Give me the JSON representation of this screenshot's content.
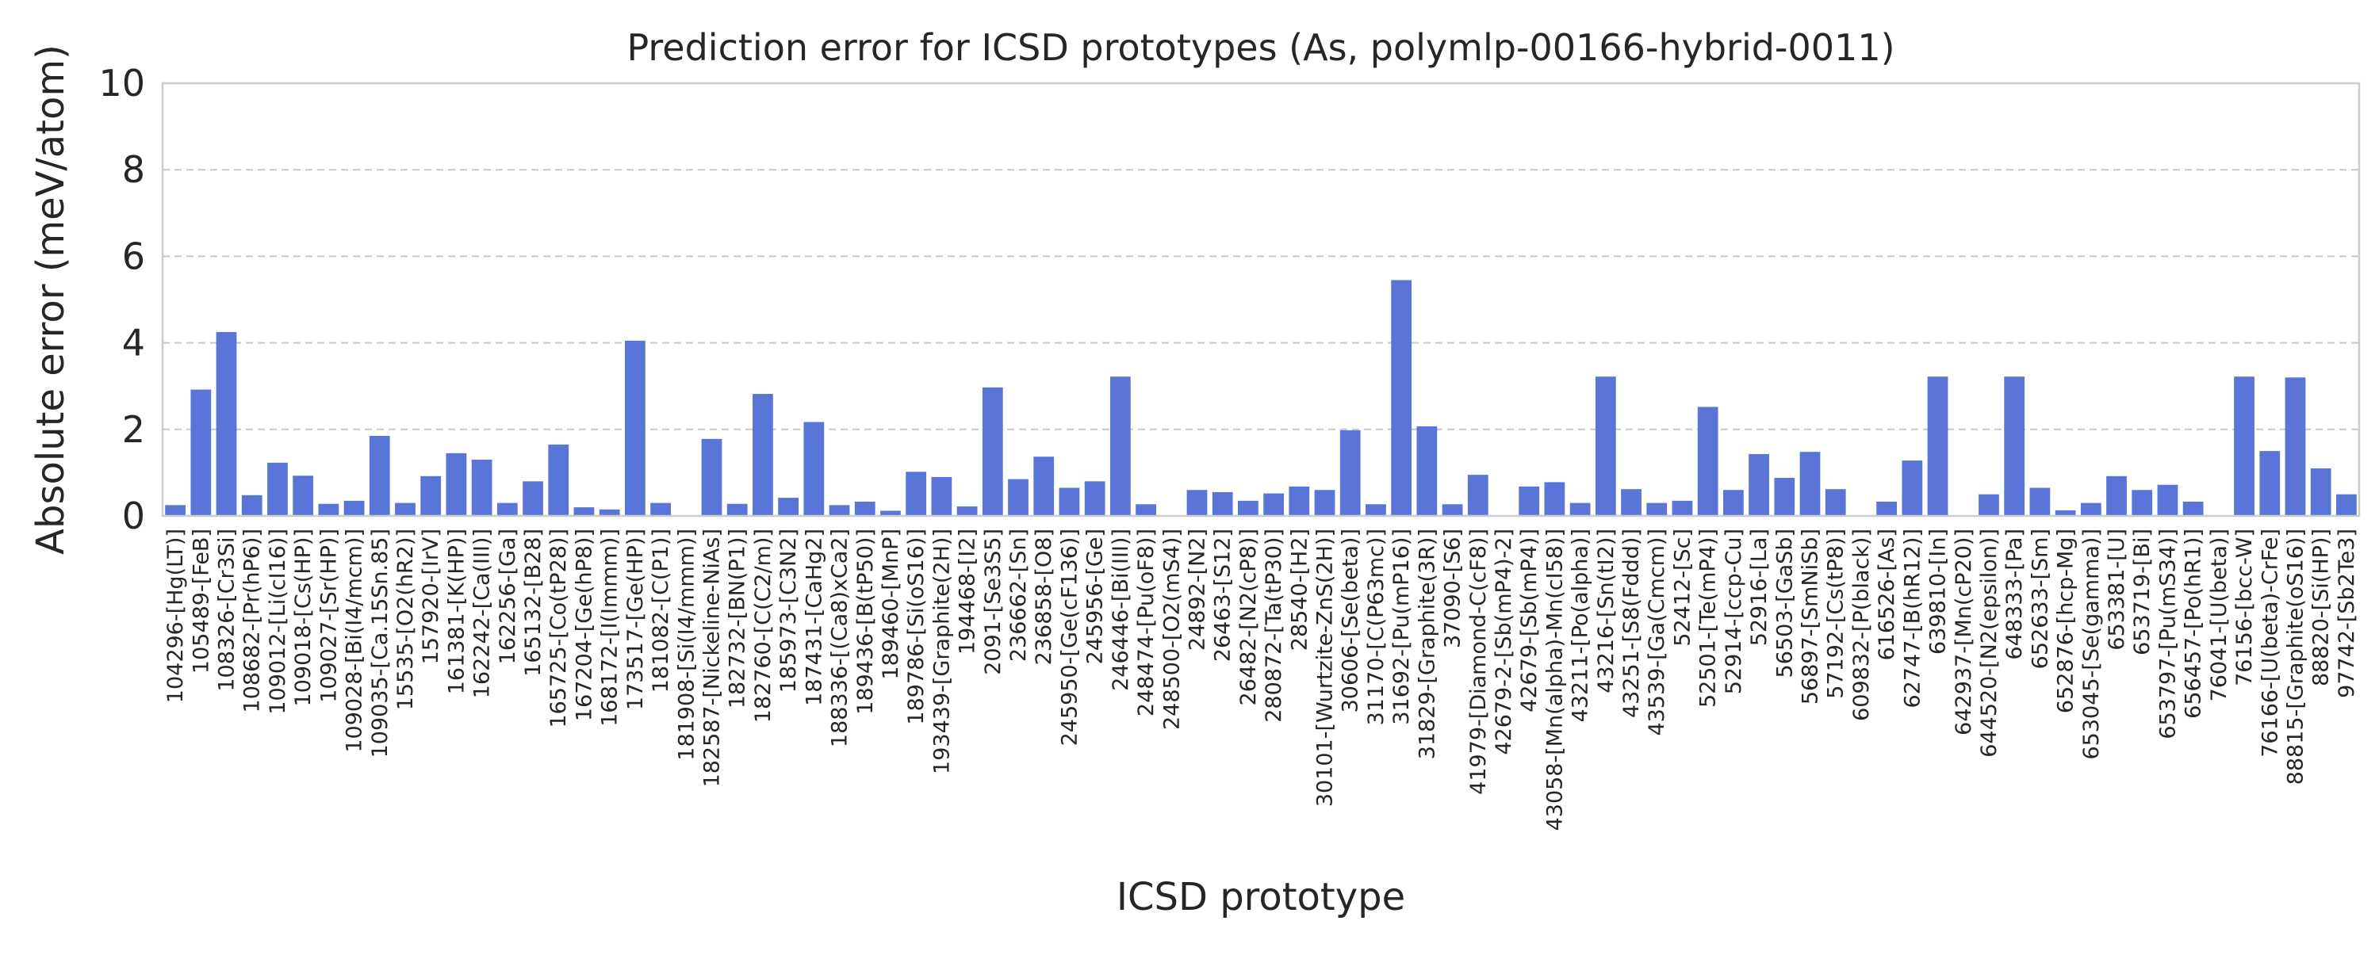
{
  "chart_data": {
    "type": "bar",
    "title": "Prediction error for ICSD prototypes (As, polymlp-00166-hybrid-0011)",
    "xlabel": "ICSD prototype",
    "ylabel": "Absolute error (meV/atom)",
    "ylim": [
      0,
      10
    ],
    "yticks": [
      0,
      2,
      4,
      6,
      8,
      10
    ],
    "grid": "horizontal dashed",
    "bar_color": "#5975d8",
    "categories": [
      "104296-[Hg(LT)]",
      "105489-[FeB]",
      "108326-[Cr3Si]",
      "108682-[Pr(hP6)]",
      "109012-[Li(cI16)]",
      "109018-[Cs(HP)]",
      "109027-[Sr(HP)]",
      "109028-[Bi(I4/mcm)]",
      "109035-[Ca.15Sn.85]",
      "15535-[O2(hR2)]",
      "157920-[IrV]",
      "161381-[K(HP)]",
      "162242-[Ca(III)]",
      "162256-[Ga]",
      "165132-[B28]",
      "165725-[Co(tP28)]",
      "167204-[Ge(hP8)]",
      "168172-[I(Immm)]",
      "173517-[Ge(HP)]",
      "181082-[C(P1)]",
      "181908-[Si(I4/mmm)]",
      "182587-[Nickeline-NiAs]",
      "182732-[BN(P1)]",
      "182760-[C(C2/m)]",
      "185973-[C3N2]",
      "187431-[CaHg2]",
      "188336-[(Ca8)xCa2]",
      "189436-[B(tP50)]",
      "189460-[MnP]",
      "189786-[Si(oS16)]",
      "193439-[Graphite(2H)]",
      "194468-[I2]",
      "2091-[Se3S5]",
      "236662-[Sn]",
      "236858-[O8]",
      "245950-[Ge(cF136)]",
      "245956-[Ge]",
      "246446-[Bi(III)]",
      "248474-[Pu(oF8)]",
      "248500-[O2(mS4)]",
      "24892-[N2]",
      "26463-[S12]",
      "26482-[N2(cP8)]",
      "280872-[Ta(tP30)]",
      "28540-[H2]",
      "30101-[Wurtzite-ZnS(2H)]",
      "30606-[Se(beta)]",
      "31170-[C(P63mc)]",
      "31692-[Pu(mP16)]",
      "31829-[Graphite(3R)]",
      "37090-[S6]",
      "41979-[Diamond-C(cF8)]",
      "42679-2-[Sb(mP4)-2]",
      "42679-[Sb(mP4)]",
      "43058-[Mn(alpha)-Mn(cI58)]",
      "43211-[Po(alpha)]",
      "43216-[Sn(tI2)]",
      "43251-[S8(Fddd)]",
      "43539-[Ga(Cmcm)]",
      "52412-[Sc]",
      "52501-[Te(mP4)]",
      "52914-[ccp-Cu]",
      "52916-[La]",
      "56503-[GaSb]",
      "56897-[SmNiSb]",
      "57192-[Cs(tP8)]",
      "609832-[P(black)]",
      "616526-[As]",
      "62747-[B(hR12)]",
      "639810-[In]",
      "642937-[Mn(cP20)]",
      "644520-[N2(epsilon)]",
      "648333-[Pa]",
      "652633-[Sm]",
      "652876-[hcp-Mg]",
      "653045-[Se(gamma)]",
      "653381-[U]",
      "653719-[Bi]",
      "653797-[Pu(mS34)]",
      "656457-[Po(hR1)]",
      "76041-[U(beta)]",
      "76156-[bcc-W]",
      "76166-[U(beta)-CrFe]",
      "88815-[Graphite(oS16)]",
      "88820-[Si(HP)]",
      "97742-[Sb2Te3]"
    ],
    "values": [
      0.25,
      2.92,
      4.25,
      0.48,
      1.23,
      0.93,
      0.28,
      0.35,
      1.85,
      0.3,
      0.92,
      1.45,
      1.3,
      0.3,
      0.8,
      1.65,
      0.2,
      0.15,
      4.05,
      0.3,
      0.0,
      1.78,
      0.28,
      2.82,
      0.42,
      2.17,
      0.25,
      0.33,
      0.12,
      1.02,
      0.9,
      0.22,
      2.97,
      0.85,
      1.37,
      0.65,
      0.8,
      3.22,
      0.27,
      0.0,
      0.6,
      0.55,
      0.35,
      0.52,
      0.68,
      0.6,
      1.98,
      0.27,
      5.45,
      2.07,
      0.27,
      0.95,
      0.0,
      0.68,
      0.78,
      0.3,
      3.22,
      0.62,
      0.3,
      0.35,
      2.52,
      0.6,
      1.43,
      0.88,
      1.48,
      0.62,
      0.0,
      0.33,
      1.28,
      3.22,
      0.0,
      0.5,
      3.22,
      0.65,
      0.13,
      0.3,
      0.92,
      0.6,
      0.72,
      0.33,
      0.0,
      3.22,
      1.5,
      3.2,
      1.1,
      0.5
    ]
  }
}
